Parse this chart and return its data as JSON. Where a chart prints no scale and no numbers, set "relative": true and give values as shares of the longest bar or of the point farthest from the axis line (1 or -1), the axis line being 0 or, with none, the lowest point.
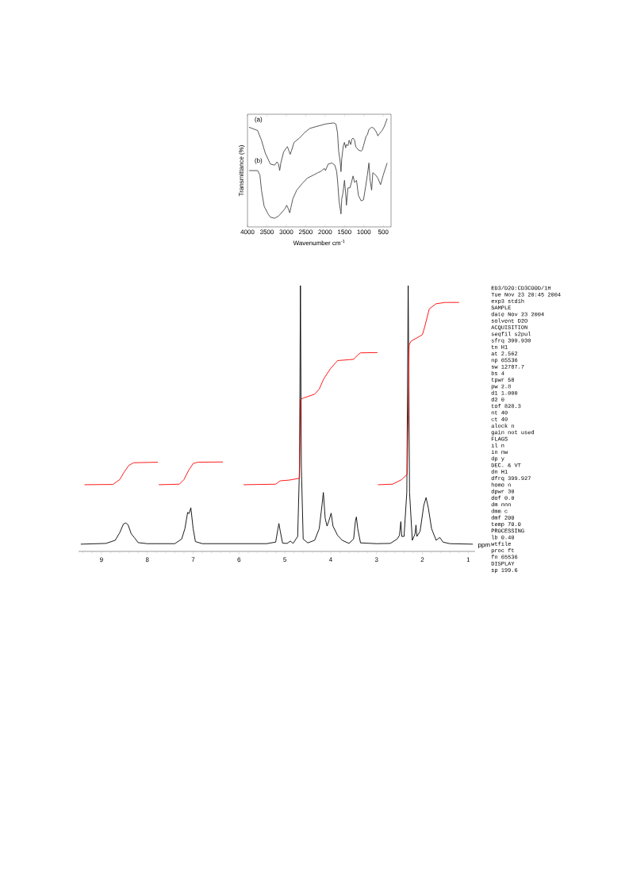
{
  "chart_data": [
    {
      "type": "line",
      "xlabel": "Wavenumber cm$^{-1}$",
      "ylabel": "Transmittance (%)",
      "relative": true,
      "xlim": [
        4000,
        300
      ],
      "xticks": [
        4000,
        3500,
        3000,
        2500,
        2000,
        1500,
        1000,
        500
      ],
      "series": [
        {
          "color": "#444444",
          "x": [
            3960,
            3740,
            3640,
            3540,
            3410,
            3300,
            3240,
            3200,
            3170,
            3140,
            3070,
            3000,
            2970,
            2930,
            2900,
            2860,
            2800,
            2660,
            2530,
            2390,
            2190,
            1990,
            1780,
            1720,
            1680,
            1650,
            1610,
            1590,
            1570,
            1530,
            1500,
            1470,
            1450,
            1410,
            1380,
            1340,
            1310,
            1280,
            1240,
            1210,
            1140,
            1070,
            1040,
            1010,
            940,
            910,
            870,
            800,
            740,
            670,
            640,
            600,
            530,
            470,
            400
          ],
          "values": [
            0.92,
            0.89,
            0.8,
            0.68,
            0.58,
            0.57,
            0.6,
            0.58,
            0.52,
            0.59,
            0.69,
            0.73,
            0.74,
            0.7,
            0.67,
            0.71,
            0.78,
            0.82,
            0.87,
            0.91,
            0.93,
            0.95,
            0.96,
            0.95,
            0.87,
            0.7,
            0.6,
            0.51,
            0.63,
            0.75,
            0.78,
            0.73,
            0.76,
            0.75,
            0.8,
            0.76,
            0.81,
            0.82,
            0.8,
            0.74,
            0.71,
            0.7,
            0.71,
            0.75,
            0.84,
            0.85,
            0.9,
            0.92,
            0.91,
            0.87,
            0.84,
            0.86,
            0.89,
            0.93,
            1.0
          ]
        },
        {
          "color": "#444444",
          "x": [
            3960,
            3740,
            3680,
            3640,
            3570,
            3470,
            3410,
            3300,
            3200,
            3100,
            3030,
            2990,
            2950,
            2910,
            2880,
            2830,
            2730,
            2590,
            2460,
            2290,
            2190,
            2120,
            2020,
            1990,
            1920,
            1820,
            1750,
            1700,
            1670,
            1640,
            1590,
            1570,
            1540,
            1500,
            1470,
            1450,
            1410,
            1360,
            1320,
            1280,
            1240,
            1190,
            1140,
            1070,
            1010,
            960,
            910,
            870,
            840,
            800,
            770,
            700,
            640,
            570,
            500,
            400
          ],
          "values": [
            0.52,
            0.52,
            0.48,
            0.34,
            0.19,
            0.12,
            0.09,
            0.08,
            0.1,
            0.14,
            0.17,
            0.2,
            0.17,
            0.13,
            0.18,
            0.26,
            0.34,
            0.4,
            0.45,
            0.48,
            0.5,
            0.51,
            0.54,
            0.52,
            0.58,
            0.59,
            0.57,
            0.51,
            0.39,
            0.24,
            0.12,
            0.26,
            0.31,
            0.43,
            0.31,
            0.2,
            0.36,
            0.36,
            0.41,
            0.47,
            0.41,
            0.43,
            0.29,
            0.24,
            0.25,
            0.36,
            0.48,
            0.59,
            0.43,
            0.34,
            0.5,
            0.48,
            0.45,
            0.39,
            0.48,
            0.59
          ]
        }
      ],
      "annotations": [
        "(a)",
        "(b)"
      ]
    },
    {
      "type": "line",
      "xlabel": "ppm",
      "relative": true,
      "xlim": [
        9.5,
        0.85
      ],
      "xticks": [
        {
          "value": 9.4,
          "label": null
        },
        {
          "value": 9.2,
          "label": null
        },
        9,
        {
          "value": 8.8,
          "label": null
        },
        {
          "value": 8.6,
          "label": null
        },
        {
          "value": 8.4,
          "label": null
        },
        {
          "value": 8.2,
          "label": null
        },
        8,
        {
          "value": 7.8,
          "label": null
        },
        {
          "value": 7.6,
          "label": null
        },
        {
          "value": 7.4,
          "label": null
        },
        {
          "value": 7.2,
          "label": null
        },
        7,
        {
          "value": 6.8,
          "label": null
        },
        {
          "value": 6.6,
          "label": null
        },
        {
          "value": 6.4,
          "label": null
        },
        {
          "value": 6.2,
          "label": null
        },
        6,
        {
          "value": 5.8,
          "label": null
        },
        {
          "value": 5.6,
          "label": null
        },
        {
          "value": 5.4,
          "label": null
        },
        {
          "value": 5.2,
          "label": null
        },
        5,
        {
          "value": 4.8,
          "label": null
        },
        {
          "value": 4.6,
          "label": null
        },
        {
          "value": 4.4,
          "label": null
        },
        {
          "value": 4.2,
          "label": null
        },
        4,
        {
          "value": 3.8,
          "label": null
        },
        {
          "value": 3.6,
          "label": null
        },
        {
          "value": 3.4,
          "label": null
        },
        {
          "value": 3.2,
          "label": null
        },
        3,
        {
          "value": 2.8,
          "label": null
        },
        {
          "value": 2.6,
          "label": null
        },
        {
          "value": 2.4,
          "label": null
        },
        {
          "value": 2.2,
          "label": null
        },
        2,
        {
          "value": 1.8,
          "label": null
        },
        {
          "value": 1.6,
          "label": null
        },
        {
          "value": 1.4,
          "label": null
        },
        {
          "value": 1.2,
          "label": null
        },
        1
      ],
      "series": [
        {
          "color": "#000000",
          "x": [
            9.45,
            8.9,
            8.7,
            8.6,
            8.52,
            8.47,
            8.42,
            8.35,
            8.28,
            8.2,
            8.0,
            7.4,
            7.25,
            7.18,
            7.12,
            7.09,
            7.05,
            7.0,
            6.95,
            6.8,
            5.4,
            5.2,
            5.15,
            5.13,
            5.1,
            5.05,
            4.95,
            4.88,
            4.82,
            4.72,
            4.68,
            4.66,
            4.64,
            4.6,
            4.5,
            4.35,
            4.25,
            4.19,
            4.16,
            4.12,
            4.08,
            4.04,
            3.99,
            3.95,
            3.85,
            3.75,
            3.6,
            3.5,
            3.46,
            3.44,
            3.41,
            3.35,
            3.0,
            2.7,
            2.55,
            2.5,
            2.47,
            2.45,
            2.4,
            2.34,
            2.31,
            2.28,
            2.22,
            2.16,
            2.14,
            2.12,
            2.05,
            1.97,
            1.92,
            1.87,
            1.8,
            1.7,
            1.62,
            1.55,
            1.4,
            0.9
          ],
          "values": [
            0,
            0.003,
            0.015,
            0.045,
            0.078,
            0.082,
            0.075,
            0.04,
            0.025,
            0.006,
            0.002,
            0.002,
            0.02,
            0.06,
            0.123,
            0.118,
            0.141,
            0.06,
            0.01,
            0.002,
            0.002,
            0.008,
            0.06,
            0.08,
            0.05,
            0.004,
            0.003,
            0.012,
            0.003,
            0.03,
            0.3,
            1.0,
            0.3,
            0.02,
            0.005,
            0.015,
            0.06,
            0.15,
            0.2,
            0.1,
            0.07,
            0.09,
            0.12,
            0.07,
            0.034,
            0.015,
            0.003,
            0.02,
            0.09,
            0.105,
            0.06,
            0.005,
            0.002,
            0.003,
            0.02,
            0.034,
            0.087,
            0.03,
            0.03,
            0.2,
            1.0,
            0.2,
            0.015,
            0.04,
            0.074,
            0.03,
            0.05,
            0.15,
            0.18,
            0.14,
            0.06,
            0.015,
            0.026,
            0.008,
            0.002,
            0
          ]
        },
        {
          "color": "#ff0000",
          "x": [
            9.37,
            8.75,
            8.6,
            8.5,
            8.4,
            8.3,
            7.77,
            7.76,
            7.75,
            7.3,
            7.2,
            7.1,
            7.0,
            6.9,
            6.35,
            6.0,
            5.9,
            5.2,
            5.1,
            4.9,
            4.68,
            4.66,
            4.6,
            4.35,
            4.25,
            4.15,
            4.0,
            3.85,
            3.5,
            3.42,
            3.35,
            2.98,
            2.975,
            2.97,
            2.65,
            2.45,
            2.33,
            2.31,
            2.29,
            2.25,
            2.0,
            1.95,
            1.85,
            1.7,
            1.5,
            1.2
          ],
          "values": [
            0.23,
            0.231,
            0.25,
            0.28,
            0.305,
            0.315,
            0.317,
            null,
            0.23,
            0.232,
            0.25,
            0.285,
            0.312,
            0.317,
            0.318,
            null,
            0.23,
            0.232,
            0.245,
            0.248,
            0.255,
            0.56,
            0.565,
            0.58,
            0.6,
            0.64,
            0.68,
            0.71,
            0.715,
            0.73,
            0.74,
            0.741,
            null,
            0.23,
            0.232,
            0.25,
            0.27,
            0.5,
            0.77,
            0.785,
            0.81,
            0.84,
            0.91,
            0.93,
            0.935,
            0.935
          ]
        }
      ],
      "annotations": [
        "ED3/D2O:CD3COOD/1H",
        "Tue Nov 23 20:45 2004",
        "exp3  std1h",
        "SAMPLE",
        "date   Nov 23 2004",
        "solvent   D2O",
        "ACQUISITION",
        "seqfil   s2pul",
        "sfrq   399.930",
        "tn   H1",
        "at   2.562",
        "np   65536",
        "sw   12787.7",
        "bs   4",
        "tpwr   58",
        "pw   2.8",
        "d1   1.000",
        "d2   0",
        "tof   828.3",
        "nt   40",
        "ct   40",
        "alock   n",
        "gain   not used",
        "FLAGS",
        "il   n",
        "in   nw",
        "dp   y",
        "DEC. & VT",
        "dn   H1",
        "dfrq   399.927",
        "homo   n",
        "dpwr   30",
        "dof   0.0",
        "dm   nnn",
        "dmm   c",
        "dmf   200",
        "temp   70.0",
        "PROCESSING",
        "lb   0.40",
        "wtfile",
        "proc   ft",
        "fn   65536",
        "DISPLAY",
        "sp   199.6"
      ]
    }
  ]
}
